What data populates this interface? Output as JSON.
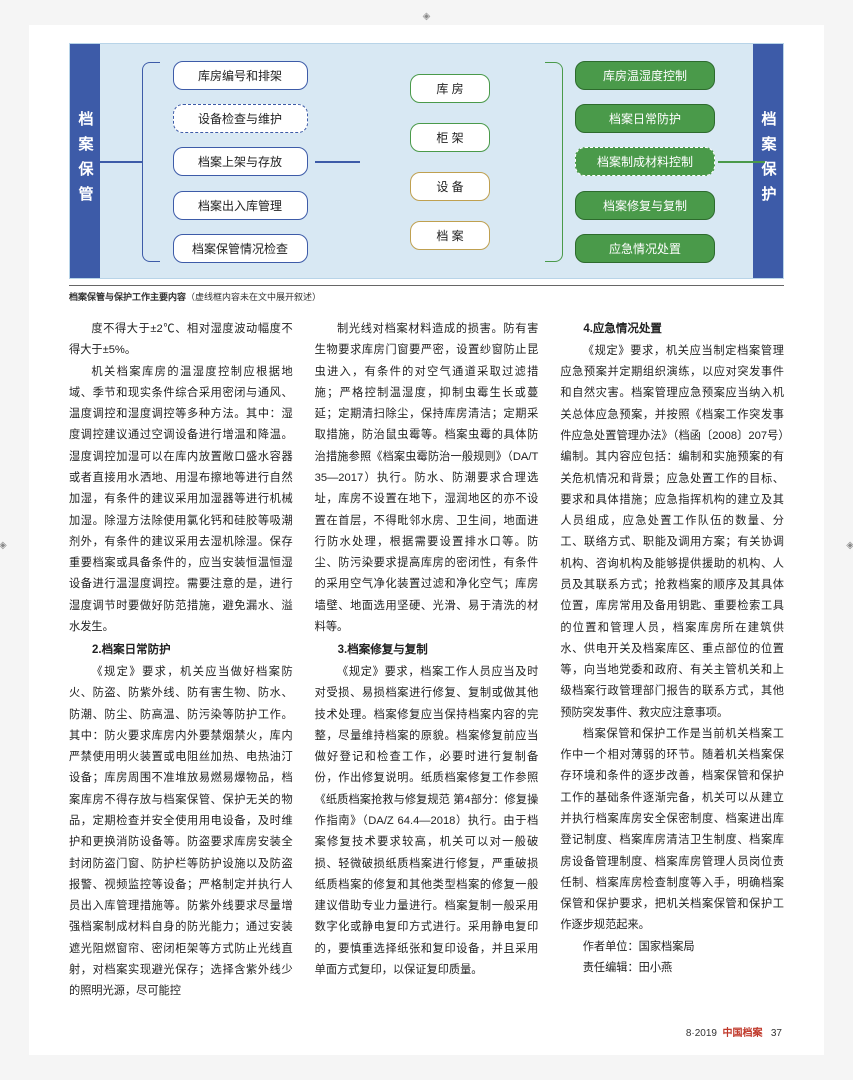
{
  "vl_left": "档案保管",
  "vl_right": "档案保护",
  "c1": [
    "库房编号和排架",
    "设备检查与维护",
    "档案上架与存放",
    "档案出入库管理",
    "档案保管情况检查"
  ],
  "c2": [
    "库 房",
    "柜 架",
    "设 备",
    "档 案"
  ],
  "c3": [
    "库房温湿度控制",
    "档案日常防护",
    "档案制成材料控制",
    "档案修复与复制",
    "应急情况处置"
  ],
  "cap_b": "档案保管与保护工作主要内容",
  "cap_n": "（虚线框内容未在文中展开叙述）",
  "p0": "度不得大于±2℃、相对湿度波动幅度不得大于±5%。",
  "p1": "机关档案库房的温湿度控制应根据地域、季节和现实条件综合采用密闭与通风、温度调控和湿度调控等多种方法。其中：湿度调控建议通过空调设备进行增温和降温。湿度调控加湿可以在库内放置敞口盛水容器或者直接用水洒地、用湿布擦地等进行自然加湿，有条件的建议采用加湿器等进行机械加湿。除湿方法除使用氯化钙和硅胶等吸潮剂外，有条件的建议采用去湿机除湿。保存重要档案或具备条件的，应当安装恒温恒湿设备进行温湿度调控。需要注意的是，进行湿度调节时要做好防范措施，避免漏水、溢水发生。",
  "h2": "2.档案日常防护",
  "p2": "《规定》要求，机关应当做好档案防火、防盗、防紫外线、防有害生物、防水、防潮、防尘、防高温、防污染等防护工作。其中：防火要求库房内外要禁烟禁火，库内严禁使用明火装置或电阻丝加热、电热油汀设备；库房周围不准堆放易燃易爆物品，档案库房不得存放与档案保管、保护无关的物品，定期检查并安全使用用电设备，及时维护和更换消防设备等。防盗要求库房安装全封闭防盗门窗、防护栏等防护设施以及防盗报警、视频监控等设备；严格制定并执行人员出入库管理措施等。防紫外线要求尽量增强档案制成材料自身的防光能力；通过安装遮光阻燃窗帘、密闭柜架等方式防止光线直射，对档案实现避光保存；选择含紫外线少的照明光源，尽可能控",
  "p3": "制光线对档案材料造成的损害。防有害生物要求库房门窗要严密，设置纱窗防止昆虫进入，有条件的对空气通道采取过滤措施；严格控制温湿度，抑制虫霉生长或蔓延；定期清扫除尘，保持库房清洁；定期采取措施，防治鼠虫霉等。档案虫霉的具体防治措施参照《档案虫霉防治一般规则》（DA/T 35—2017）执行。防水、防潮要求合理选址，库房不设置在地下，湿润地区的亦不设置在首层，不得毗邻水房、卫生间，地面进行防水处理，根据需要设置排水口等。防尘、防污染要求提高库房的密闭性，有条件的采用空气净化装置过滤和净化空气；库房墙壁、地面选用坚硬、光滑、易于清洗的材料等。",
  "h3": "3.档案修复与复制",
  "p4": "《规定》要求，档案工作人员应当及时对受损、易损档案进行修复、复制或做其他技术处理。档案修复应当保持档案内容的完整，尽量维持档案的原貌。档案修复前应当做好登记和检查工作，必要时进行复制备份，作出修复说明。纸质档案修复工作参照《纸质档案抢救与修复规范 第4部分：修复操作指南》（DA/Z 64.4—2018）执行。由于档案修复技术要求较高，机关可以对一般破损、轻微破损纸质档案进行修复，严重破损纸质档案的修复和其他类型档案的修复一般建议借助专业力量进行。档案复制一般采用数字化或静电复印方式进行。采用静电复印的，要慎重选择纸张和复印设备，并且采用单面方式复印，以保证复印质量。",
  "h4": "4.应急情况处置",
  "p5": "《规定》要求，机关应当制定档案管理应急预案并定期组织演练，以应对突发事件和自然灾害。档案管理应急预案应当纳入机关总体应急预案，并按照《档案工作突发事件应急处置管理办法》（档函〔2008〕207号）编制。其内容应包括：编制和实施预案的有关危机情况和背景；应急处置工作的目标、要求和具体措施；应急指挥机构的建立及其人员组成，应急处置工作队伍的数量、分工、联络方式、职能及调用方案；有关协调机构、咨询机构及能够提供援助的机构、人员及其联系方式；抢救档案的顺序及其具体位置，库房常用及备用钥匙、重要检索工具的位置和管理人员，档案库房所在建筑供水、供电开关及档案库区、重点部位的位置等，向当地党委和政府、有关主管机关和上级档案行政管理部门报告的联系方式，其他预防突发事件、救灾应注意事项。",
  "p6": "档案保管和保护工作是当前机关档案工作中一个相对薄弱的环节。随着机关档案保存环境和条件的逐步改善，档案保管和保护工作的基础条件逐渐完备，机关可以从建立并执行档案库房安全保密制度、档案进出库登记制度、档案库房清洁卫生制度、档案库房设备管理制度、档案库房管理人员岗位责任制、档案库房检查制度等入手，明确档案保管和保护要求，把机关档案保管和保护工作逐步规范起来。",
  "au": "作者单位：国家档案局",
  "ed": "责任编辑：田小燕",
  "pn": "8·2019",
  "mag": "中国档案",
  "pg": "37"
}
